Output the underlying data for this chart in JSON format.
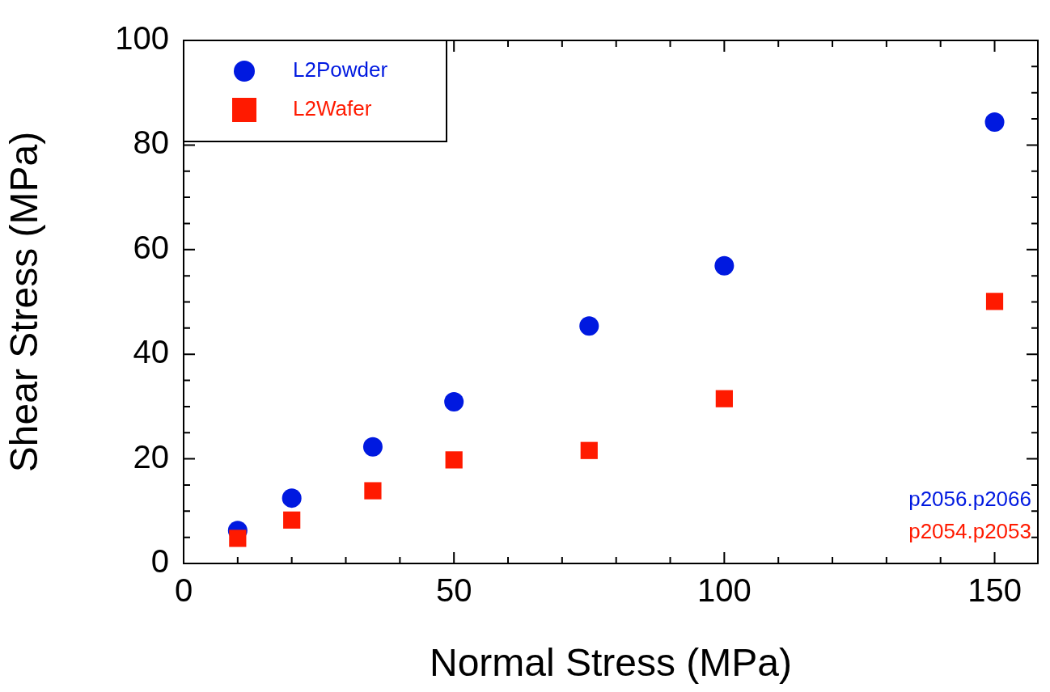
{
  "chart_data": {
    "type": "scatter",
    "xlabel": "Normal Stress (MPa)",
    "ylabel": "Shear Stress (MPa)",
    "xlim": [
      0,
      158
    ],
    "ylim": [
      0,
      100
    ],
    "xticks": [
      0,
      {
        "value": 10,
        "label": null
      },
      {
        "value": 20,
        "label": null
      },
      {
        "value": 30,
        "label": null
      },
      {
        "value": 40,
        "label": null
      },
      50,
      {
        "value": 60,
        "label": null
      },
      {
        "value": 70,
        "label": null
      },
      {
        "value": 80,
        "label": null
      },
      {
        "value": 90,
        "label": null
      },
      100,
      {
        "value": 110,
        "label": null
      },
      {
        "value": 120,
        "label": null
      },
      {
        "value": 130,
        "label": null
      },
      {
        "value": 140,
        "label": null
      },
      150
    ],
    "yticks": [
      0,
      {
        "value": 5,
        "label": null
      },
      {
        "value": 10,
        "label": null
      },
      {
        "value": 15,
        "label": null
      },
      20,
      {
        "value": 25,
        "label": null
      },
      {
        "value": 30,
        "label": null
      },
      {
        "value": 35,
        "label": null
      },
      40,
      {
        "value": 45,
        "label": null
      },
      {
        "value": 50,
        "label": null
      },
      {
        "value": 55,
        "label": null
      },
      60,
      {
        "value": 65,
        "label": null
      },
      {
        "value": 70,
        "label": null
      },
      {
        "value": 75,
        "label": null
      },
      80,
      {
        "value": 85,
        "label": null
      },
      {
        "value": 90,
        "label": null
      },
      {
        "value": 95,
        "label": null
      },
      100
    ],
    "grid": false,
    "legend": "top left",
    "series": [
      {
        "name": "L2Powder",
        "color": "#0019e0",
        "marker": "circle",
        "x": [
          10,
          20,
          35,
          50,
          75,
          100,
          150
        ],
        "values": [
          6.3,
          12.5,
          22.3,
          30.9,
          45.4,
          56.9,
          84.4
        ]
      },
      {
        "name": "L2Wafer",
        "color": "#ff1a00",
        "marker": "square",
        "x": [
          10,
          20,
          35,
          50,
          75,
          100,
          150
        ],
        "values": [
          4.8,
          8.3,
          13.9,
          19.8,
          21.6,
          31.5,
          50.1
        ]
      }
    ],
    "annotations": [
      "p2056.p2066",
      "p2054.p2053"
    ]
  }
}
